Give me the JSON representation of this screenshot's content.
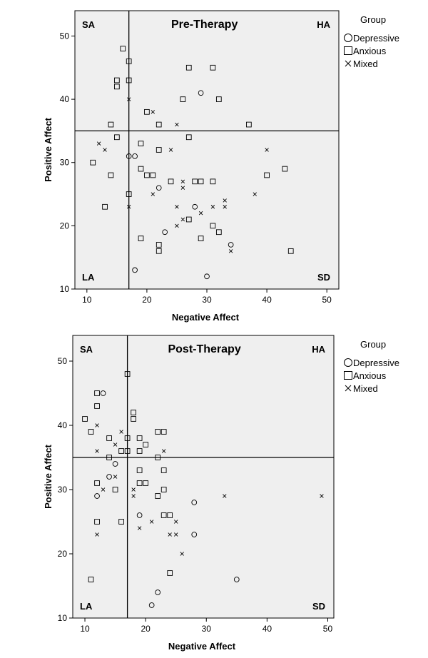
{
  "chart_data": [
    {
      "type": "scatter",
      "title": "Pre-Therapy",
      "xlabel": "Negative Affect",
      "ylabel": "Positive Affect",
      "xlim": [
        8,
        52
      ],
      "ylim": [
        10,
        54
      ],
      "xticks": [
        10,
        20,
        30,
        40,
        50
      ],
      "yticks": [
        10,
        20,
        30,
        40,
        50
      ],
      "reference_lines": {
        "x": 17,
        "y": 35
      },
      "quadrant_labels": {
        "top_left": "SA",
        "top_right": "HA",
        "bottom_left": "LA",
        "bottom_right": "SD"
      },
      "legend": {
        "title": "Group",
        "position": "right"
      },
      "series": [
        {
          "name": "Depressive",
          "marker": "circle",
          "points": [
            [
              29,
              41
            ],
            [
              17,
              31
            ],
            [
              18,
              31
            ],
            [
              22,
              26
            ],
            [
              28,
              23
            ],
            [
              23,
              19
            ],
            [
              34,
              17
            ],
            [
              18,
              13
            ],
            [
              30,
              12
            ]
          ]
        },
        {
          "name": "Anxious",
          "marker": "square",
          "points": [
            [
              16,
              48
            ],
            [
              17,
              46
            ],
            [
              15,
              43
            ],
            [
              17,
              43
            ],
            [
              15,
              42
            ],
            [
              27,
              45
            ],
            [
              31,
              45
            ],
            [
              26,
              40
            ],
            [
              32,
              40
            ],
            [
              20,
              38
            ],
            [
              14,
              36
            ],
            [
              22,
              36
            ],
            [
              37,
              36
            ],
            [
              15,
              34
            ],
            [
              27,
              34
            ],
            [
              19,
              33
            ],
            [
              22,
              32
            ],
            [
              11,
              30
            ],
            [
              19,
              29
            ],
            [
              20,
              28
            ],
            [
              21,
              28
            ],
            [
              14,
              28
            ],
            [
              24,
              27
            ],
            [
              28,
              27
            ],
            [
              29,
              27
            ],
            [
              31,
              27
            ],
            [
              40,
              28
            ],
            [
              43,
              29
            ],
            [
              17,
              25
            ],
            [
              13,
              23
            ],
            [
              27,
              21
            ],
            [
              31,
              20
            ],
            [
              32,
              19
            ],
            [
              19,
              18
            ],
            [
              29,
              18
            ],
            [
              22,
              17
            ],
            [
              22,
              16
            ],
            [
              44,
              16
            ]
          ]
        },
        {
          "name": "Mixed",
          "marker": "x",
          "points": [
            [
              17,
              40
            ],
            [
              21,
              38
            ],
            [
              25,
              36
            ],
            [
              12,
              33
            ],
            [
              13,
              32
            ],
            [
              24,
              32
            ],
            [
              40,
              32
            ],
            [
              26,
              27
            ],
            [
              26,
              26
            ],
            [
              21,
              25
            ],
            [
              38,
              25
            ],
            [
              33,
              24
            ],
            [
              25,
              23
            ],
            [
              31,
              23
            ],
            [
              33,
              23
            ],
            [
              17,
              23
            ],
            [
              29,
              22
            ],
            [
              26,
              21
            ],
            [
              25,
              20
            ],
            [
              34,
              16
            ]
          ]
        }
      ]
    },
    {
      "type": "scatter",
      "title": "Post-Therapy",
      "xlabel": "Negative Affect",
      "ylabel": "Positive Affect",
      "xlim": [
        8,
        51
      ],
      "ylim": [
        10,
        54
      ],
      "xticks": [
        10,
        20,
        30,
        40,
        50
      ],
      "yticks": [
        10,
        20,
        30,
        40,
        50
      ],
      "reference_lines": {
        "x": 17,
        "y": 35
      },
      "quadrant_labels": {
        "top_left": "SA",
        "top_right": "HA",
        "bottom_left": "LA",
        "bottom_right": "SD"
      },
      "legend": {
        "title": "Group",
        "position": "right"
      },
      "series": [
        {
          "name": "Depressive",
          "marker": "circle",
          "points": [
            [
              13,
              45
            ],
            [
              14,
              32
            ],
            [
              15,
              34
            ],
            [
              12,
              29
            ],
            [
              19,
              26
            ],
            [
              28,
              28
            ],
            [
              28,
              23
            ],
            [
              35,
              16
            ],
            [
              22,
              14
            ],
            [
              21,
              12
            ]
          ]
        },
        {
          "name": "Anxious",
          "marker": "square",
          "points": [
            [
              17,
              48
            ],
            [
              12,
              45
            ],
            [
              12,
              43
            ],
            [
              18,
              42
            ],
            [
              18,
              41
            ],
            [
              10,
              41
            ],
            [
              11,
              39
            ],
            [
              22,
              39
            ],
            [
              23,
              39
            ],
            [
              14,
              38
            ],
            [
              17,
              38
            ],
            [
              19,
              38
            ],
            [
              20,
              37
            ],
            [
              16,
              36
            ],
            [
              17,
              36
            ],
            [
              19,
              36
            ],
            [
              14,
              35
            ],
            [
              22,
              35
            ],
            [
              19,
              33
            ],
            [
              23,
              33
            ],
            [
              12,
              31
            ],
            [
              19,
              31
            ],
            [
              20,
              31
            ],
            [
              15,
              30
            ],
            [
              23,
              30
            ],
            [
              22,
              29
            ],
            [
              12,
              25
            ],
            [
              16,
              25
            ],
            [
              23,
              26
            ],
            [
              24,
              26
            ],
            [
              24,
              17
            ],
            [
              11,
              16
            ]
          ]
        },
        {
          "name": "Mixed",
          "marker": "x",
          "points": [
            [
              16,
              39
            ],
            [
              12,
              40
            ],
            [
              15,
              37
            ],
            [
              12,
              36
            ],
            [
              23,
              36
            ],
            [
              15,
              32
            ],
            [
              13,
              30
            ],
            [
              18,
              30
            ],
            [
              18,
              29
            ],
            [
              33,
              29
            ],
            [
              49,
              29
            ],
            [
              21,
              25
            ],
            [
              25,
              25
            ],
            [
              19,
              24
            ],
            [
              24,
              23
            ],
            [
              25,
              23
            ],
            [
              12,
              23
            ],
            [
              26,
              20
            ]
          ]
        }
      ]
    }
  ]
}
